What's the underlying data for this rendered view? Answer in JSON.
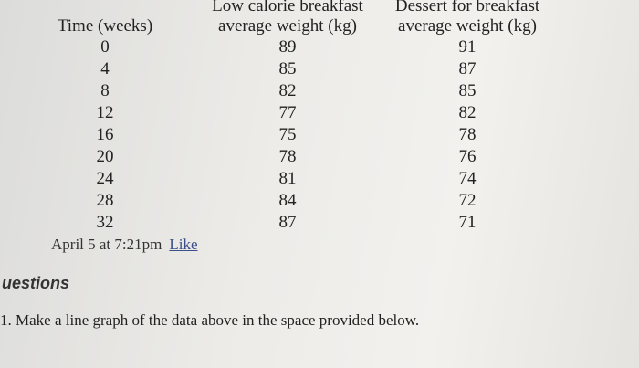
{
  "table": {
    "headers": [
      [
        "Time (weeks)"
      ],
      [
        "Low calorie breakfast",
        "average weight (kg)"
      ],
      [
        "Dessert for breakfast",
        "average weight (kg)"
      ]
    ],
    "rows": [
      [
        0,
        89,
        91
      ],
      [
        4,
        85,
        87
      ],
      [
        8,
        82,
        85
      ],
      [
        12,
        77,
        82
      ],
      [
        16,
        75,
        78
      ],
      [
        20,
        78,
        76
      ],
      [
        24,
        81,
        74
      ],
      [
        28,
        84,
        72
      ],
      [
        32,
        87,
        71
      ]
    ]
  },
  "post": {
    "timestamp": "April 5 at 7:21pm",
    "like": "Like"
  },
  "section": {
    "title": "uestions",
    "question": "1. Make a line graph of the data above in the space provided below."
  }
}
